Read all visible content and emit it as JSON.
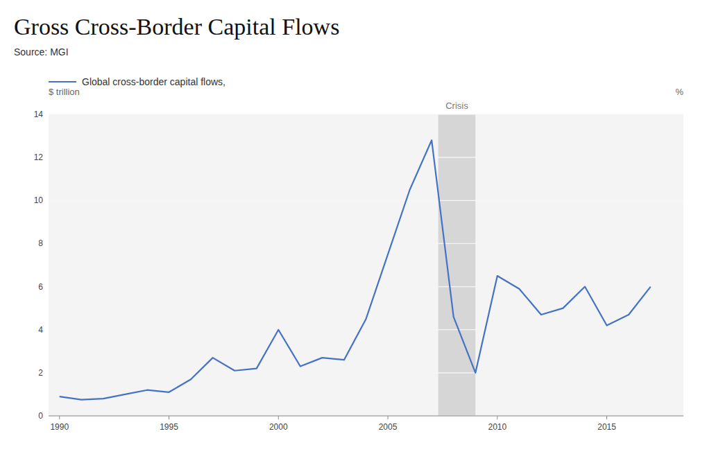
{
  "chart_data": {
    "type": "line",
    "title": "Gross Cross-Border Capital Flows",
    "source": "Source: MGI",
    "y_label": "$ trillion",
    "annotations": [
      {
        "text": "%"
      }
    ],
    "x": [
      1990,
      1991,
      1992,
      1993,
      1994,
      1995,
      1996,
      1997,
      1998,
      1999,
      2000,
      2001,
      2002,
      2003,
      2004,
      2005,
      2006,
      2007,
      2008,
      2009,
      2010,
      2011,
      2012,
      2013,
      2014,
      2015,
      2016,
      2017
    ],
    "series": [
      {
        "name": "Global cross-border capital flows,",
        "color": "#4472c4",
        "values": [
          0.9,
          0.75,
          0.8,
          1.0,
          1.2,
          1.1,
          1.7,
          2.7,
          2.1,
          2.2,
          4.0,
          2.3,
          2.7,
          2.6,
          4.5,
          7.5,
          10.5,
          12.8,
          4.6,
          2.0,
          6.5,
          5.9,
          4.7,
          5.0,
          6.0,
          4.2,
          4.7,
          6.0
        ]
      }
    ],
    "xlim": [
      1989.5,
      2018.5
    ],
    "xticks": [
      1990,
      1995,
      2000,
      2005,
      2010,
      2015
    ],
    "ylim": [
      0,
      14
    ],
    "yticks": [
      0,
      2,
      4,
      6,
      8,
      10,
      12,
      14
    ],
    "grid": true,
    "legend": "top",
    "shaded_spans": [
      {
        "start": 2007.3,
        "end": 2009.0,
        "label": "Crisis"
      }
    ]
  }
}
